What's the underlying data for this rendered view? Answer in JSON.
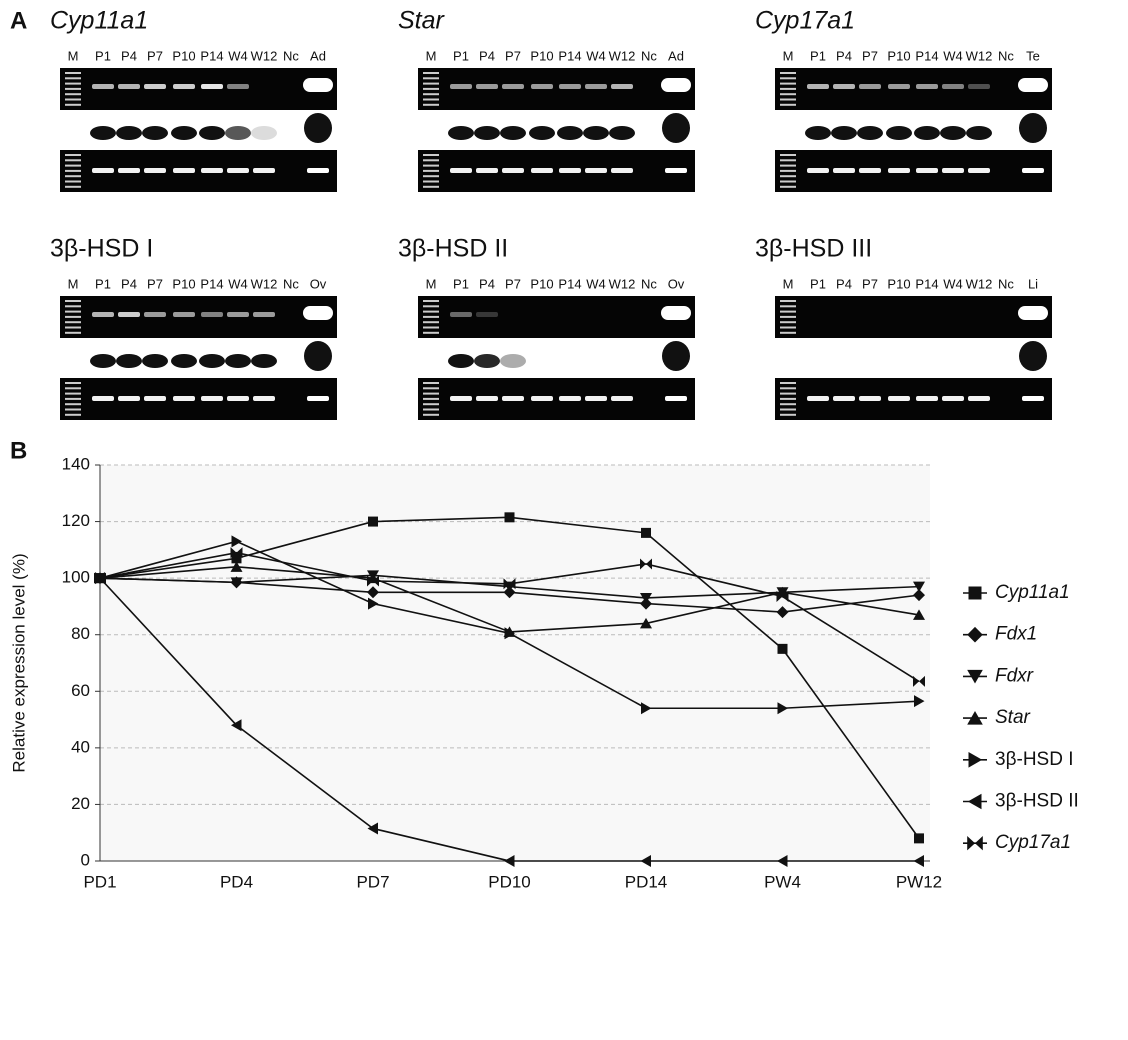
{
  "panel_a": {
    "label": "A",
    "gels": [
      {
        "title": "Cyp11a1",
        "italic": true,
        "lanes": [
          "M",
          "P1",
          "P4",
          "P7",
          "P10",
          "P14",
          "W4",
          "W12",
          "Nc",
          "Ad"
        ]
      },
      {
        "title": "Star",
        "italic": true,
        "lanes": [
          "M",
          "P1",
          "P4",
          "P7",
          "P10",
          "P14",
          "W4",
          "W12",
          "Nc",
          "Ad"
        ]
      },
      {
        "title": "Cyp17a1",
        "italic": true,
        "lanes": [
          "M",
          "P1",
          "P4",
          "P7",
          "P10",
          "P14",
          "W4",
          "W12",
          "Nc",
          "Te"
        ]
      },
      {
        "title": "3β-HSD I",
        "italic": false,
        "lanes": [
          "M",
          "P1",
          "P4",
          "P7",
          "P10",
          "P14",
          "W4",
          "W12",
          "Nc",
          "Ov"
        ]
      },
      {
        "title": "3β-HSD II",
        "italic": false,
        "lanes": [
          "M",
          "P1",
          "P4",
          "P7",
          "P10",
          "P14",
          "W4",
          "W12",
          "Nc",
          "Ov"
        ]
      },
      {
        "title": "3β-HSD III",
        "italic": false,
        "lanes": [
          "M",
          "P1",
          "P4",
          "P7",
          "P10",
          "P14",
          "W4",
          "W12",
          "Nc",
          "Li"
        ]
      }
    ]
  },
  "chart_data": {
    "type": "line",
    "panel_label": "B",
    "y_label": "Relative expression level (%)",
    "categories": [
      "PD1",
      "PD4",
      "PD7",
      "PD10",
      "PD14",
      "PW4",
      "PW12"
    ],
    "ylim": [
      0,
      140
    ],
    "yticks": [
      0,
      20,
      40,
      60,
      80,
      100,
      120,
      140
    ],
    "grid": true,
    "legend": "right",
    "series": [
      {
        "name": "Cyp11a1",
        "italic": true,
        "marker": "square",
        "color": "#111111",
        "values": [
          100,
          107,
          120,
          121.5,
          116,
          75,
          8
        ]
      },
      {
        "name": "Fdx1",
        "italic": true,
        "marker": "diamond",
        "color": "#111111",
        "values": [
          100,
          98.5,
          95,
          95,
          91,
          88,
          94
        ]
      },
      {
        "name": "Fdxr",
        "italic": true,
        "marker": "triangle-down",
        "color": "#111111",
        "values": [
          100,
          98.5,
          101,
          97,
          93,
          95,
          97
        ]
      },
      {
        "name": "Star",
        "italic": true,
        "marker": "triangle-up",
        "color": "#111111",
        "values": [
          100,
          104,
          100,
          81,
          84,
          95,
          87
        ]
      },
      {
        "name": "3β-HSD I",
        "italic": false,
        "marker": "triangle-right",
        "color": "#111111",
        "values": [
          100,
          113,
          91,
          80.5,
          54,
          54,
          56.5
        ]
      },
      {
        "name": "3β-HSD II",
        "italic": false,
        "marker": "triangle-left",
        "color": "#111111",
        "values": [
          100,
          48,
          11.5,
          0,
          0,
          0,
          0
        ]
      },
      {
        "name": "Cyp17a1",
        "italic": true,
        "marker": "bowtie",
        "color": "#111111",
        "values": [
          100,
          109,
          99,
          98,
          105,
          93.5,
          63.5
        ]
      }
    ]
  }
}
